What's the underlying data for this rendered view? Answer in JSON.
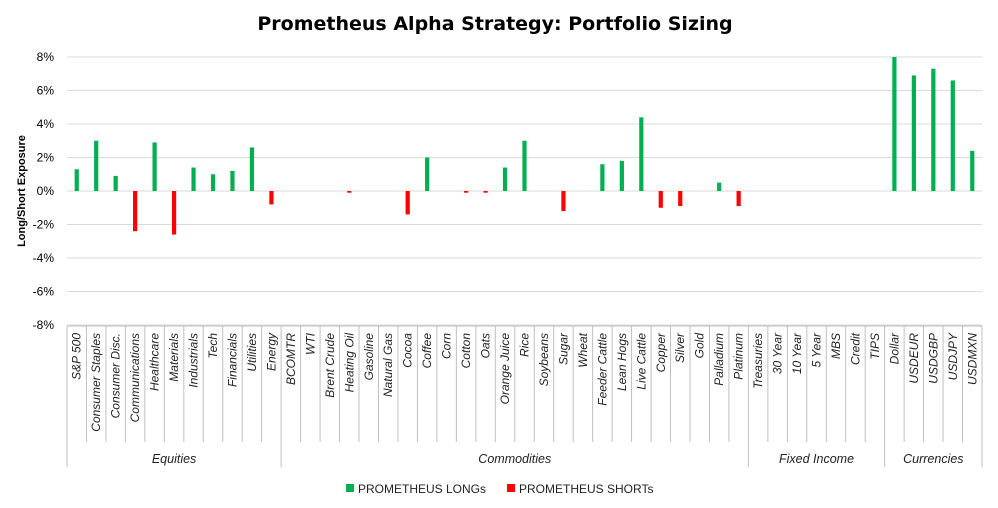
{
  "chart_data": {
    "type": "bar",
    "title": "Prometheus Alpha Strategy: Portfolio Sizing",
    "ylabel": "Long/Short Exposure",
    "ylim": [
      -8,
      8
    ],
    "yticks": [
      -8,
      -6,
      -4,
      -2,
      0,
      2,
      4,
      6,
      8
    ],
    "ytick_labels": [
      "-8%",
      "-6%",
      "-4%",
      "-2%",
      "0%",
      "2%",
      "4%",
      "6%",
      "8%"
    ],
    "grid": true,
    "legend_position": "bottom",
    "colors": {
      "long": "#00b050",
      "short": "#ff0000",
      "grid": "#d9d9d9",
      "axis": "#bfbfbf"
    },
    "groups": [
      {
        "name": "Equities",
        "count": 11
      },
      {
        "name": "Commodities",
        "count": 24
      },
      {
        "name": "Fixed Income",
        "count": 7
      },
      {
        "name": "Currencies",
        "count": 5
      }
    ],
    "categories": [
      "S&P 500",
      "Consumer Staples",
      "Consumer Disc.",
      "Communications",
      "Healthcare",
      "Materials",
      "Industrials",
      "Tech",
      "Financials",
      "Utilities",
      "Energy",
      "BCOMTR",
      "WTI",
      "Brent Crude",
      "Heating Oil",
      "Gasoline",
      "Natural Gas",
      "Cocoa",
      "Coffee",
      "Corn",
      "Cotton",
      "Oats",
      "Orange Juice",
      "Rice",
      "Soybeans",
      "Sugar",
      "Wheat",
      "Feeder Cattle",
      "Lean Hogs",
      "Live Cattle",
      "Copper",
      "Silver",
      "Gold",
      "Palladium",
      "Platinum",
      "Treasuries",
      "30 Year",
      "10 Year",
      "5 Year",
      "MBS",
      "Credit",
      "TIPS",
      "Dollar",
      "USDEUR",
      "USDGBP",
      "USDJPY",
      "USDMXN"
    ],
    "series": [
      {
        "name": "PROMETHEUS LONGs",
        "values": [
          1.3,
          3.0,
          0.9,
          0,
          2.9,
          0,
          1.4,
          1.0,
          1.2,
          2.6,
          0,
          0,
          0,
          0,
          0,
          0,
          0,
          0,
          2.0,
          0,
          0,
          0,
          1.4,
          3.0,
          0,
          0,
          0,
          1.6,
          1.8,
          4.4,
          0,
          0,
          0,
          0.5,
          0,
          0,
          0,
          0,
          0,
          0,
          0,
          0,
          8.0,
          6.9,
          7.3,
          6.6,
          2.4
        ]
      },
      {
        "name": "PROMETHEUS SHORTs",
        "values": [
          0,
          0,
          0,
          -2.4,
          0,
          -2.6,
          0,
          0,
          0,
          0,
          -0.8,
          0,
          0,
          0,
          -0.1,
          0,
          0,
          -1.4,
          0,
          0,
          -0.1,
          -0.1,
          0,
          0,
          0,
          -1.2,
          0,
          0,
          0,
          0,
          -1.0,
          -0.9,
          0,
          0,
          -0.9,
          0,
          0,
          0,
          0,
          0,
          0,
          0,
          0,
          0,
          0,
          0,
          0
        ]
      }
    ]
  }
}
